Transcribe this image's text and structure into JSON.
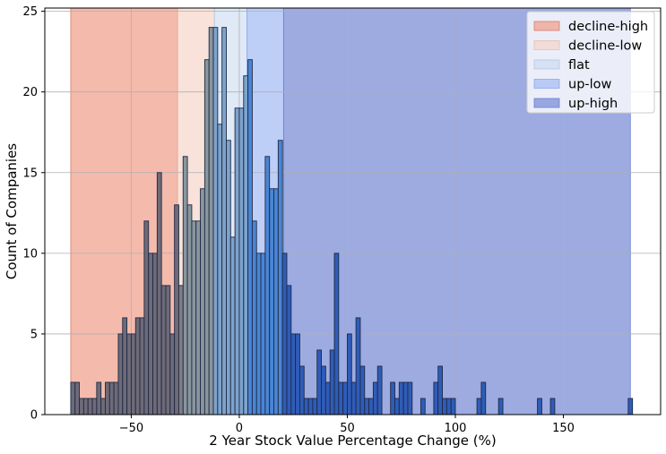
{
  "chart_data": {
    "type": "bar",
    "title": "",
    "xlabel": "2 Year Stock Value Percentage Change (%)",
    "ylabel": "Count of Companies",
    "xlim": [
      -90,
      195
    ],
    "ylim": [
      0,
      25.2
    ],
    "xticks": [
      -50,
      0,
      50,
      100,
      150
    ],
    "yticks": [
      0,
      5,
      10,
      15,
      20,
      25
    ],
    "grid": true,
    "legend_position": "top-right",
    "regions": [
      {
        "name": "decline-high",
        "x0": -78,
        "x1": -28.5,
        "fill": "#f0a08c",
        "opacity": 0.72,
        "edge": "#d97a6a"
      },
      {
        "name": "decline-low",
        "x0": -28.5,
        "x1": -11.5,
        "fill": "#f5d3c5",
        "opacity": 0.65,
        "edge": "#e8bfb0"
      },
      {
        "name": "flat",
        "x0": -11.5,
        "x1": 3.5,
        "fill": "#c7d7ee",
        "opacity": 0.55,
        "edge": "#b4c8e4"
      },
      {
        "name": "up-low",
        "x0": 3.5,
        "x1": 20.5,
        "fill": "#aac0f5",
        "opacity": 0.78,
        "edge": "#8ea8ee"
      },
      {
        "name": "up-high",
        "x0": 20.5,
        "x1": 181,
        "fill": "#8193d8",
        "opacity": 0.78,
        "edge": "#6b7ecf"
      }
    ],
    "series": [
      {
        "bin_width": 2,
        "bars": [
          {
            "x": -77,
            "count": 2,
            "color": "#6e6a78"
          },
          {
            "x": -75,
            "count": 2,
            "color": "#6e6a78"
          },
          {
            "x": -73,
            "count": 1,
            "color": "#6e6a78"
          },
          {
            "x": -71,
            "count": 1,
            "color": "#6e6a78"
          },
          {
            "x": -69,
            "count": 1,
            "color": "#6e6a78"
          },
          {
            "x": -67,
            "count": 1,
            "color": "#6e6a78"
          },
          {
            "x": -65,
            "count": 2,
            "color": "#6e6a78"
          },
          {
            "x": -63,
            "count": 1,
            "color": "#6e6a78"
          },
          {
            "x": -61,
            "count": 2,
            "color": "#6e6a78"
          },
          {
            "x": -59,
            "count": 2,
            "color": "#6e6a78"
          },
          {
            "x": -57,
            "count": 2,
            "color": "#6e6a78"
          },
          {
            "x": -55,
            "count": 5,
            "color": "#6e6a78"
          },
          {
            "x": -53,
            "count": 6,
            "color": "#6e6a78"
          },
          {
            "x": -51,
            "count": 5,
            "color": "#6e6a78"
          },
          {
            "x": -49,
            "count": 5,
            "color": "#6e6a78"
          },
          {
            "x": -47,
            "count": 6,
            "color": "#6e6a78"
          },
          {
            "x": -45,
            "count": 6,
            "color": "#6e6a78"
          },
          {
            "x": -43,
            "count": 12,
            "color": "#6e6a78"
          },
          {
            "x": -41,
            "count": 10,
            "color": "#6e6a78"
          },
          {
            "x": -39,
            "count": 10,
            "color": "#6e6a78"
          },
          {
            "x": -37,
            "count": 15,
            "color": "#6e6a78"
          },
          {
            "x": -35,
            "count": 8,
            "color": "#6e6a78"
          },
          {
            "x": -33,
            "count": 8,
            "color": "#6e6a78"
          },
          {
            "x": -31,
            "count": 5,
            "color": "#6e6a78"
          },
          {
            "x": -29,
            "count": 13,
            "color": "#6e6a78"
          },
          {
            "x": -27,
            "count": 8,
            "color": "#7e7e88"
          },
          {
            "x": -25,
            "count": 16,
            "color": "#8a969e"
          },
          {
            "x": -23,
            "count": 13,
            "color": "#8a969e"
          },
          {
            "x": -21,
            "count": 12,
            "color": "#8a969e"
          },
          {
            "x": -19,
            "count": 12,
            "color": "#8a969e"
          },
          {
            "x": -17,
            "count": 14,
            "color": "#8a969e"
          },
          {
            "x": -15,
            "count": 22,
            "color": "#8a969e"
          },
          {
            "x": -13,
            "count": 24,
            "color": "#8a969e"
          },
          {
            "x": -11,
            "count": 24,
            "color": "#7da3cc"
          },
          {
            "x": -9,
            "count": 18,
            "color": "#7da3cc"
          },
          {
            "x": -7,
            "count": 24,
            "color": "#7da3cc"
          },
          {
            "x": -5,
            "count": 17,
            "color": "#7da3cc"
          },
          {
            "x": -3,
            "count": 11,
            "color": "#7da3cc"
          },
          {
            "x": -1,
            "count": 19,
            "color": "#7da3cc"
          },
          {
            "x": 1,
            "count": 19,
            "color": "#7da3cc"
          },
          {
            "x": 3,
            "count": 21,
            "color": "#7da3cc"
          },
          {
            "x": 5,
            "count": 22,
            "color": "#4a85d6"
          },
          {
            "x": 7,
            "count": 12,
            "color": "#4a85d6"
          },
          {
            "x": 9,
            "count": 10,
            "color": "#4a85d6"
          },
          {
            "x": 11,
            "count": 10,
            "color": "#4a85d6"
          },
          {
            "x": 13,
            "count": 16,
            "color": "#4a85d6"
          },
          {
            "x": 15,
            "count": 14,
            "color": "#4a85d6"
          },
          {
            "x": 17,
            "count": 14,
            "color": "#4a85d6"
          },
          {
            "x": 19,
            "count": 17,
            "color": "#4a85d6"
          },
          {
            "x": 21,
            "count": 10,
            "color": "#2f5cb8"
          },
          {
            "x": 23,
            "count": 8,
            "color": "#2f5cb8"
          },
          {
            "x": 25,
            "count": 5,
            "color": "#2f5cb8"
          },
          {
            "x": 27,
            "count": 5,
            "color": "#2f5cb8"
          },
          {
            "x": 29,
            "count": 3,
            "color": "#2f5cb8"
          },
          {
            "x": 31,
            "count": 1,
            "color": "#2f5cb8"
          },
          {
            "x": 33,
            "count": 1,
            "color": "#2f5cb8"
          },
          {
            "x": 35,
            "count": 1,
            "color": "#2f5cb8"
          },
          {
            "x": 37,
            "count": 4,
            "color": "#2f5cb8"
          },
          {
            "x": 39,
            "count": 3,
            "color": "#2f5cb8"
          },
          {
            "x": 41,
            "count": 2,
            "color": "#2f5cb8"
          },
          {
            "x": 43,
            "count": 4,
            "color": "#2f5cb8"
          },
          {
            "x": 45,
            "count": 10,
            "color": "#2f5cb8"
          },
          {
            "x": 47,
            "count": 2,
            "color": "#2f5cb8"
          },
          {
            "x": 49,
            "count": 2,
            "color": "#2f5cb8"
          },
          {
            "x": 51,
            "count": 5,
            "color": "#2f5cb8"
          },
          {
            "x": 53,
            "count": 2,
            "color": "#2f5cb8"
          },
          {
            "x": 55,
            "count": 6,
            "color": "#2f5cb8"
          },
          {
            "x": 57,
            "count": 3,
            "color": "#2f5cb8"
          },
          {
            "x": 59,
            "count": 1,
            "color": "#2f5cb8"
          },
          {
            "x": 61,
            "count": 1,
            "color": "#2f5cb8"
          },
          {
            "x": 63,
            "count": 2,
            "color": "#2f5cb8"
          },
          {
            "x": 65,
            "count": 3,
            "color": "#2f5cb8"
          },
          {
            "x": 71,
            "count": 2,
            "color": "#2f5cb8"
          },
          {
            "x": 73,
            "count": 1,
            "color": "#2f5cb8"
          },
          {
            "x": 75,
            "count": 2,
            "color": "#2f5cb8"
          },
          {
            "x": 77,
            "count": 2,
            "color": "#2f5cb8"
          },
          {
            "x": 79,
            "count": 2,
            "color": "#2f5cb8"
          },
          {
            "x": 85,
            "count": 1,
            "color": "#2f5cb8"
          },
          {
            "x": 91,
            "count": 2,
            "color": "#2f5cb8"
          },
          {
            "x": 93,
            "count": 3,
            "color": "#2f5cb8"
          },
          {
            "x": 95,
            "count": 1,
            "color": "#2f5cb8"
          },
          {
            "x": 97,
            "count": 1,
            "color": "#2f5cb8"
          },
          {
            "x": 99,
            "count": 1,
            "color": "#2f5cb8"
          },
          {
            "x": 111,
            "count": 1,
            "color": "#2f5cb8"
          },
          {
            "x": 113,
            "count": 2,
            "color": "#2f5cb8"
          },
          {
            "x": 121,
            "count": 1,
            "color": "#2f5cb8"
          },
          {
            "x": 139,
            "count": 1,
            "color": "#2f5cb8"
          },
          {
            "x": 145,
            "count": 1,
            "color": "#2f5cb8"
          },
          {
            "x": 181,
            "count": 1,
            "color": "#2f5cb8"
          }
        ]
      }
    ]
  }
}
